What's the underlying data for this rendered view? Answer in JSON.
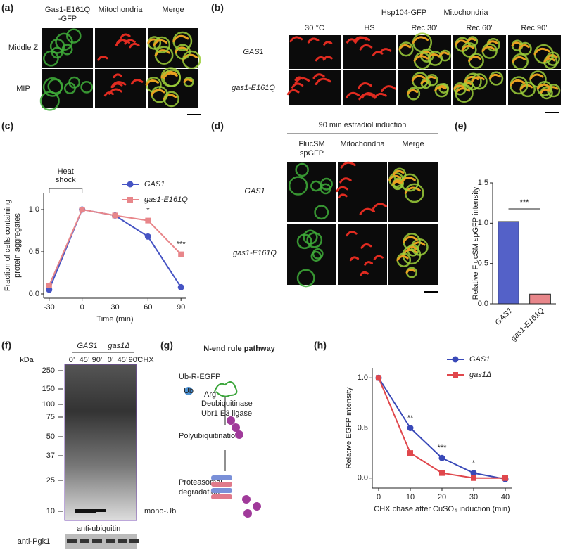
{
  "panels": {
    "a": {
      "label": "(a)",
      "columns": [
        [
          "Gas1-E161Q",
          "-GFP"
        ],
        [
          "Mitochondria"
        ],
        [
          "Merge"
        ]
      ],
      "rows": [
        "Middle Z",
        "MIP"
      ]
    },
    "b": {
      "label": "(b)",
      "title": [
        "Hsp104-GFP",
        "Mitochondria"
      ],
      "columns": [
        "30 °C",
        "HS",
        "Rec 30’",
        "Rec 60’",
        "Rec 90’"
      ],
      "rows": [
        "GAS1",
        "gas1-E161Q"
      ]
    },
    "c": {
      "label": "(c)"
    },
    "d": {
      "label": "(d)",
      "title": "90 min estradiol induction",
      "columns": [
        [
          "FlucSM",
          "spGFP"
        ],
        [
          "Mitochondria"
        ],
        [
          "Merge"
        ]
      ],
      "rows": [
        "GAS1",
        "gas1-E161Q"
      ]
    },
    "e": {
      "label": "(e)"
    },
    "f": {
      "label": "(f)",
      "unit": "kDa",
      "groups": [
        "GAS1",
        "gas1Δ"
      ],
      "lanes": [
        "0’",
        "45’",
        "90’",
        "0’",
        "45’",
        "90’"
      ],
      "treatment": "CHX",
      "markers": [
        "250",
        "150",
        "100",
        "75",
        "50",
        "37",
        "25",
        "10"
      ],
      "band": "mono-Ub",
      "antibody": "anti-ubiquitin",
      "loading": "anti-Pgk1"
    },
    "g": {
      "label": "(g)",
      "title": "N-end rule pathway",
      "substrate": "Ub-R-EGFP",
      "enzymes": [
        "Deubiquitinase",
        "Ubr1 E3 ligase"
      ],
      "steps": [
        "Polyubiquitination",
        [
          "Proteasomal",
          "degradation"
        ]
      ],
      "ub": "Ub",
      "arg": "Arg"
    },
    "h": {
      "label": "(h)"
    }
  },
  "chart_data": [
    {
      "type": "line",
      "x_label": "Time (min)",
      "y_label": [
        "Fraction of cells containing",
        "protein aggregates"
      ],
      "x": [
        -30,
        0,
        30,
        60,
        90
      ],
      "xlim": [
        -35,
        95
      ],
      "xticks": [
        -30,
        0,
        30,
        60,
        90
      ],
      "ylim": [
        -0.05,
        1.2
      ],
      "yticks": [
        {
          "value": 0,
          "label": "0.0"
        },
        0.5,
        {
          "value": 1,
          "label": "1.0"
        }
      ],
      "series": [
        {
          "name": "GAS1",
          "color": "#4654c4",
          "marker": "circle",
          "values": [
            0.05,
            1.0,
            0.93,
            0.68,
            0.08
          ]
        },
        {
          "name": "gas1-E161Q",
          "color": "#e8868a",
          "marker": "square",
          "values": [
            0.1,
            1.0,
            0.93,
            0.87,
            0.47
          ]
        }
      ],
      "annotations": [
        {
          "text": "*",
          "x": 60
        },
        {
          "text": "***",
          "x": 90
        }
      ],
      "heat_shock": {
        "lines": [
          "Heat",
          "shock"
        ],
        "from": -30,
        "to": 0
      },
      "legend": "upper right"
    },
    {
      "type": "bar",
      "y_label": "Relative FlucSM spGFP intensity",
      "categories": [
        "GAS1",
        "gas1-E161Q"
      ],
      "values": [
        1.02,
        0.12
      ],
      "colors": [
        "#5461c8",
        "#e8868a"
      ],
      "ylim": [
        0,
        1.5
      ],
      "yticks": [
        {
          "value": 0,
          "label": "0.0"
        },
        0.5,
        {
          "value": 1,
          "label": "1.0"
        },
        {
          "value": 1.5,
          "label": "1.5"
        }
      ],
      "significance": "***"
    },
    {
      "type": "line",
      "x_label": "CHX chase after CuSO₄ induction (min)",
      "y_label": [
        "Relative EGFP intensity"
      ],
      "x": [
        0,
        10,
        20,
        30,
        40
      ],
      "xlim": [
        -2,
        42
      ],
      "xticks": [
        0,
        10,
        20,
        30,
        40
      ],
      "ylim": [
        -0.1,
        1.1
      ],
      "yticks": [
        {
          "value": 0,
          "label": "0.0"
        },
        0.5,
        {
          "value": 1,
          "label": "1.0"
        }
      ],
      "series": [
        {
          "name": "GAS1",
          "color": "#3949b8",
          "marker": "circle",
          "values": [
            1.0,
            0.5,
            0.2,
            0.05,
            -0.01
          ]
        },
        {
          "name": "gas1Δ",
          "color": "#e0474c",
          "marker": "square",
          "values": [
            1.0,
            0.25,
            0.05,
            0.0,
            0.0
          ]
        }
      ],
      "annotations": [
        {
          "text": "**",
          "x": 10
        },
        {
          "text": "***",
          "x": 20
        },
        {
          "text": "*",
          "x": 30
        }
      ],
      "legend": "upper right"
    }
  ]
}
